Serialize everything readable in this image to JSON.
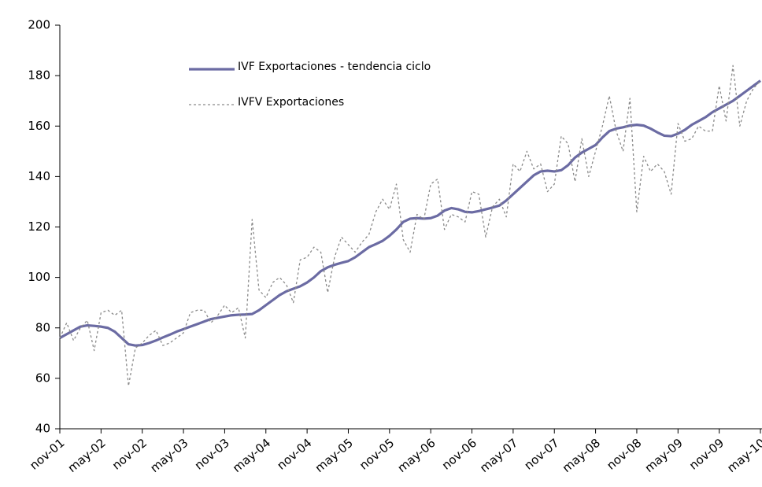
{
  "chart_data": {
    "type": "line",
    "categories": [
      "nov-01",
      null,
      null,
      null,
      null,
      null,
      "may-02",
      null,
      null,
      null,
      null,
      null,
      "nov-02",
      null,
      null,
      null,
      null,
      null,
      "may-03",
      null,
      null,
      null,
      null,
      null,
      "nov-03",
      null,
      null,
      null,
      null,
      null,
      "may-04",
      null,
      null,
      null,
      null,
      null,
      "nov-04",
      null,
      null,
      null,
      null,
      null,
      "may-05",
      null,
      null,
      null,
      null,
      null,
      "nov-05",
      null,
      null,
      null,
      null,
      null,
      "may-06",
      null,
      null,
      null,
      null,
      null,
      "nov-06",
      null,
      null,
      null,
      null,
      null,
      "may-07",
      null,
      null,
      null,
      null,
      null,
      "nov-07",
      null,
      null,
      null,
      null,
      null,
      "may-08",
      null,
      null,
      null,
      null,
      null,
      "nov-08",
      null,
      null,
      null,
      null,
      null,
      "may-09",
      null,
      null,
      null,
      null,
      null,
      "nov-09",
      null,
      null,
      null,
      null,
      null,
      "may-10"
    ],
    "series": [
      {
        "name": "IVF Exportaciones - tendencia ciclo",
        "color": "#6b6ba3",
        "style": "solid",
        "values": [
          76,
          77.5,
          79,
          80.5,
          81,
          80.8,
          80.5,
          80,
          78.5,
          76,
          73.5,
          73,
          73.2,
          74,
          75,
          76.2,
          77.3,
          78.5,
          79.5,
          80.5,
          81.5,
          82.5,
          83.5,
          84,
          84.5,
          85,
          85.2,
          85.3,
          85.5,
          87,
          89,
          91,
          93,
          94.5,
          95.5,
          96.5,
          98,
          100,
          102.5,
          104,
          105,
          105.8,
          106.5,
          108,
          110,
          112,
          113.2,
          114.5,
          116.5,
          119,
          122,
          123.3,
          123.5,
          123.3,
          123.5,
          124.5,
          126.5,
          127.5,
          127,
          126,
          125.8,
          126.3,
          127,
          127.7,
          128.5,
          130.5,
          133,
          135.5,
          138,
          140.5,
          142,
          142.3,
          142,
          142.5,
          144.5,
          147.5,
          149.5,
          151,
          152.5,
          155.5,
          158,
          159,
          159.5,
          160.2,
          160.5,
          160.2,
          159,
          157.5,
          156.2,
          156,
          157,
          158.5,
          160.5,
          162,
          163.5,
          165.5,
          167,
          168.5,
          170,
          172,
          174,
          176,
          178
        ]
      },
      {
        "name": "IVFV Exportaciones",
        "color": "#8a8a8a",
        "style": "dotted",
        "values": [
          76,
          82,
          75,
          80,
          83,
          71,
          86,
          87,
          85,
          87,
          57,
          72,
          74,
          77,
          79,
          73,
          74,
          76,
          78,
          86,
          87,
          87,
          82,
          85,
          89,
          86,
          88,
          76,
          123,
          95,
          92,
          98,
          100,
          97,
          90,
          107,
          108,
          112,
          110,
          94,
          108,
          116,
          113,
          110,
          114,
          117,
          126,
          131,
          127,
          137,
          115,
          110,
          125,
          123,
          137,
          139,
          119,
          125,
          124,
          122,
          134,
          133,
          116,
          128,
          131,
          124,
          145,
          142,
          150,
          143,
          145,
          134,
          137,
          156,
          153,
          138,
          155,
          140,
          150,
          160,
          172,
          158,
          150,
          171,
          126,
          148,
          142,
          145,
          142,
          133,
          161,
          154,
          155,
          160,
          158,
          158,
          176,
          162,
          184,
          160,
          170,
          175,
          178
        ]
      }
    ],
    "ylim": [
      40,
      200
    ],
    "yticks": [
      40,
      60,
      80,
      100,
      120,
      140,
      160,
      180,
      200
    ],
    "grid": false
  }
}
